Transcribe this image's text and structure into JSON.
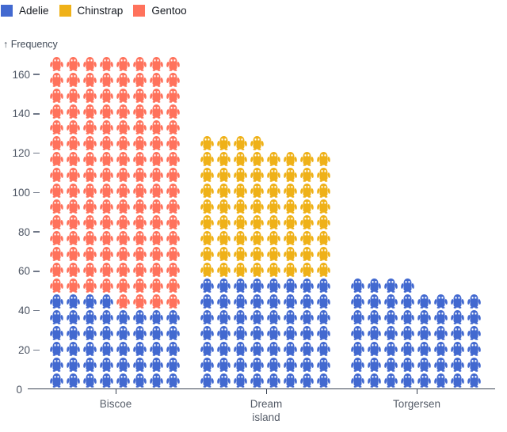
{
  "legend": {
    "items": [
      {
        "label": "Adelie",
        "color": "#4269d0"
      },
      {
        "label": "Chinstrap",
        "color": "#efb118"
      },
      {
        "label": "Gentoo",
        "color": "#ff725c"
      }
    ]
  },
  "y_axis": {
    "label": "↑ Frequency",
    "ticks": [
      0,
      20,
      40,
      60,
      80,
      100,
      120,
      140,
      160
    ]
  },
  "chart_data": {
    "type": "pictogram-stacked-bar",
    "icon": "penguin-icon",
    "unit_value": 1,
    "units_per_row": 8,
    "categories": [
      "Biscoe",
      "Dream island",
      "Torgersen"
    ],
    "tick_labels": [
      [
        "Biscoe"
      ],
      [
        "Dream",
        "island"
      ],
      [
        "Torgersen"
      ]
    ],
    "series": [
      {
        "name": "Adelie",
        "color": "#4269d0",
        "values": [
          44,
          56,
          52
        ]
      },
      {
        "name": "Chinstrap",
        "color": "#efb118",
        "values": [
          0,
          68,
          0
        ]
      },
      {
        "name": "Gentoo",
        "color": "#ff725c",
        "values": [
          124,
          0,
          0
        ]
      }
    ],
    "totals": [
      168,
      124,
      52
    ],
    "xlabel": "",
    "ylabel": "Frequency",
    "ylim": [
      0,
      168
    ],
    "grid": false,
    "legend_position": "top-left",
    "stack_order_bottom_to_top": [
      "Adelie",
      "Chinstrap",
      "Gentoo"
    ]
  }
}
